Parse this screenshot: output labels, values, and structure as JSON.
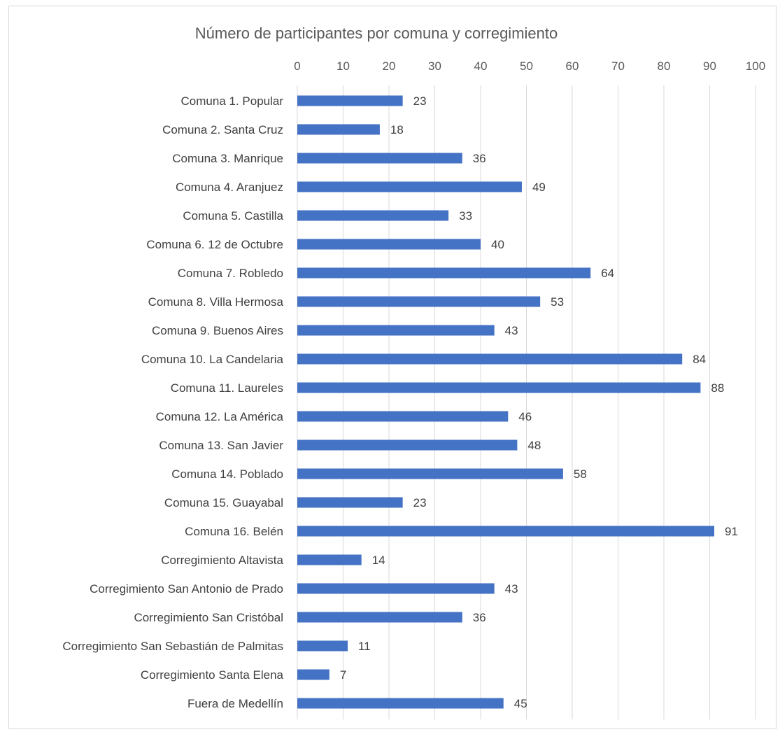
{
  "chart_data": {
    "type": "bar",
    "orientation": "horizontal",
    "title": "Número de participantes por comuna y corregimiento",
    "xlim": [
      0,
      100
    ],
    "x_ticks": [
      "0",
      "10",
      "20",
      "30",
      "40",
      "50",
      "60",
      "70",
      "80",
      "90",
      "100"
    ],
    "x_axis_position": "top",
    "grid": true,
    "legend": "none",
    "bar_color": "#4472c4",
    "categories": [
      "Comuna 1. Popular",
      "Comuna 2. Santa Cruz",
      "Comuna 3. Manrique",
      "Comuna 4. Aranjuez",
      "Comuna 5. Castilla",
      "Comuna 6. 12 de Octubre",
      "Comuna 7. Robledo",
      "Comuna 8. Villa Hermosa",
      "Comuna 9. Buenos Aires",
      "Comuna 10. La Candelaria",
      "Comuna 11. Laureles",
      "Comuna 12. La América",
      "Comuna 13. San Javier",
      "Comuna 14. Poblado",
      "Comuna 15. Guayabal",
      "Comuna 16. Belén",
      "Corregimiento Altavista",
      "Corregimiento San Antonio de Prado",
      "Corregimiento San Cristóbal",
      "Corregimiento San Sebastián de Palmitas",
      "Corregimiento Santa Elena",
      "Fuera de Medellín"
    ],
    "values": [
      23,
      18,
      36,
      49,
      33,
      40,
      64,
      53,
      43,
      84,
      88,
      46,
      48,
      58,
      23,
      91,
      14,
      43,
      36,
      11,
      7,
      45
    ]
  }
}
